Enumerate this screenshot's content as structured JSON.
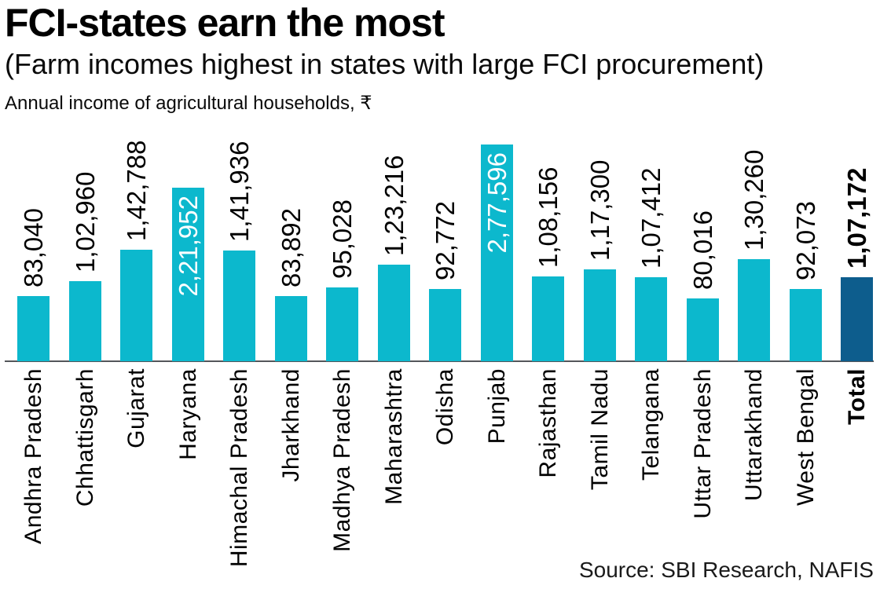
{
  "header": {
    "title": "FCI-states earn the most",
    "subtitle": "(Farm incomes highest in states with large FCI procurement)",
    "note": "Annual income of agricultural households, ₹"
  },
  "source": "Source: SBI Research, NAFIS",
  "chart_data": {
    "type": "bar",
    "title": "FCI-states earn the most",
    "subtitle": "(Farm incomes highest in states with large FCI procurement)",
    "unit_label": "Annual income of agricultural households, ₹",
    "categories": [
      "Andhra Pradesh",
      "Chhattisgarh",
      "Gujarat",
      "Haryana",
      "Himachal Pradesh",
      "Jharkhand",
      "Madhya Pradesh",
      "Maharashtra",
      "Odisha",
      "Punjab",
      "Rajasthan",
      "Tamil Nadu",
      "Telangana",
      "Uttar Pradesh",
      "Uttarakhand",
      "West Bengal",
      "Total"
    ],
    "values": [
      83040,
      102960,
      142788,
      221952,
      141936,
      83892,
      95028,
      123216,
      92772,
      277596,
      108156,
      117300,
      107412,
      80016,
      130260,
      92073,
      107172
    ],
    "value_labels": [
      "83,040",
      "1,02,960",
      "1,42,788",
      "2,21,952",
      "1,41,936",
      "83,892",
      "95,028",
      "1,23,216",
      "92,772",
      "2,77,596",
      "1,08,156",
      "1,17,300",
      "1,07,412",
      "80,016",
      "1,30,260",
      "92,073",
      "1,07,172"
    ],
    "label_inside": [
      "Haryana",
      "Punjab"
    ],
    "emphasis_category": "Total",
    "ylim": [
      0,
      290000
    ],
    "grid": false,
    "legend": null,
    "bar_orientation": "vertical",
    "label_rotation_degrees": 90,
    "colors": {
      "bar": "#0cb8cd",
      "total_bar": "#0d5d8d",
      "value_label": "#000000",
      "inside_value_label": "#ffffff",
      "axis_line": "#54565a",
      "text": "#000000"
    },
    "source": "Source: SBI Research, NAFIS"
  }
}
